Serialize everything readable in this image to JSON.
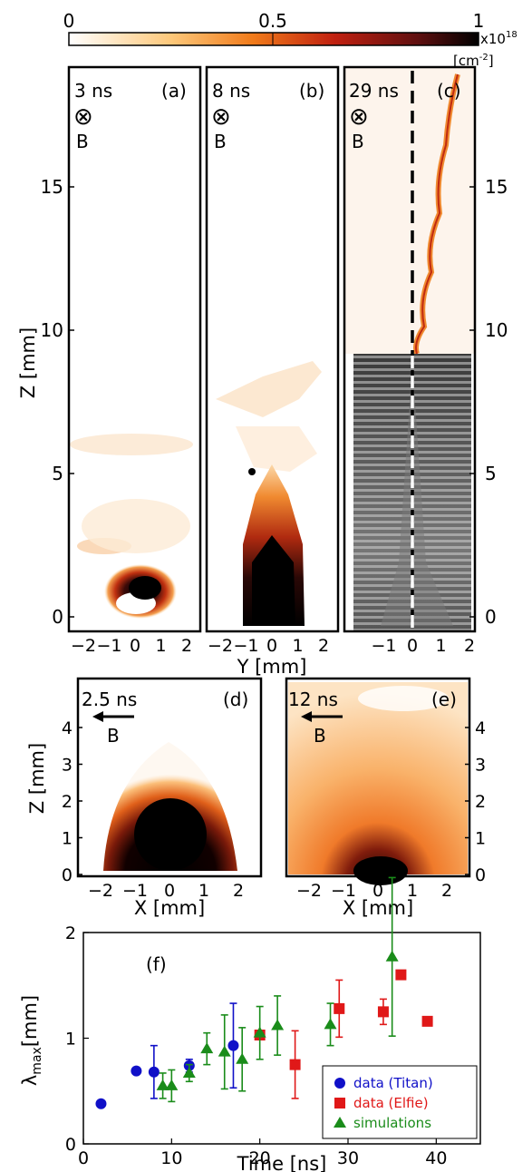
{
  "colorbar": {
    "ticks": [
      "0",
      "0.5",
      "1"
    ],
    "multiplier": "x10",
    "multiplier_exp": "18",
    "unit": "[cm",
    "unit_exp": "-2",
    "unit_close": "]"
  },
  "panels_top": {
    "y_axis_label": "Z [mm]",
    "x_axis_label": "Y [mm]",
    "z_ticks": [
      "0",
      "5",
      "10",
      "15"
    ],
    "y_ticks_ab": [
      "-2",
      "-1",
      "0",
      "1",
      "2"
    ],
    "y_ticks_c": [
      "-1",
      "0",
      "1",
      "2"
    ],
    "field_symbol": "⊗",
    "field_label": "B",
    "a": {
      "time": "3 ns",
      "label": "(a)"
    },
    "b": {
      "time": "8 ns",
      "label": "(b)"
    },
    "c": {
      "time": "29 ns",
      "label": "(c)"
    }
  },
  "panels_mid": {
    "y_axis_label": "Z [mm]",
    "x_axis_label": "X [mm]",
    "z_ticks": [
      "0",
      "1",
      "2",
      "3",
      "4"
    ],
    "x_ticks": [
      "-2",
      "-1",
      "0",
      "1",
      "2"
    ],
    "field_label": "B",
    "d": {
      "time": "2.5 ns",
      "label": "(d)"
    },
    "e": {
      "time": "12 ns",
      "label": "(e)"
    }
  },
  "chart_data": {
    "type": "scatter",
    "panel_label": "(f)",
    "xlabel": "Time [ns]",
    "ylabel": "λmax [mm]",
    "ylabel_main": "λ",
    "ylabel_sub": "max",
    "ylabel_unit": "[mm]",
    "xlim": [
      0,
      45
    ],
    "ylim": [
      0,
      2
    ],
    "xticks": [
      0,
      10,
      20,
      30,
      40
    ],
    "yticks": [
      0,
      1,
      2
    ],
    "legend_position": "bottom-right",
    "series": [
      {
        "name": "data (Titan)",
        "color": "#1010c8",
        "marker": "circle",
        "points": [
          {
            "x": 2,
            "y": 0.38,
            "err": 0
          },
          {
            "x": 6,
            "y": 0.69,
            "err": 0
          },
          {
            "x": 8,
            "y": 0.68,
            "err": 0.25
          },
          {
            "x": 12,
            "y": 0.74,
            "err": 0.06
          },
          {
            "x": 17,
            "y": 0.93,
            "err": 0.4
          }
        ]
      },
      {
        "name": "data (Elfie)",
        "color": "#e01818",
        "marker": "square",
        "points": [
          {
            "x": 20,
            "y": 1.03,
            "err": 0
          },
          {
            "x": 24,
            "y": 0.75,
            "err": 0.32
          },
          {
            "x": 29,
            "y": 1.28,
            "err": 0.27
          },
          {
            "x": 34,
            "y": 1.25,
            "err": 0.12
          },
          {
            "x": 36,
            "y": 1.6,
            "err": 0
          },
          {
            "x": 39,
            "y": 1.16,
            "err": 0
          }
        ]
      },
      {
        "name": "simulations",
        "color": "#1a8c1a",
        "marker": "triangle",
        "points": [
          {
            "x": 9,
            "y": 0.55,
            "err": 0.12
          },
          {
            "x": 10,
            "y": 0.55,
            "err": 0.15
          },
          {
            "x": 12,
            "y": 0.67,
            "err": 0.08
          },
          {
            "x": 14,
            "y": 0.9,
            "err": 0.15
          },
          {
            "x": 16,
            "y": 0.87,
            "err": 0.35
          },
          {
            "x": 18,
            "y": 0.8,
            "err": 0.3
          },
          {
            "x": 20,
            "y": 1.05,
            "err": 0.25
          },
          {
            "x": 22,
            "y": 1.12,
            "err": 0.28
          },
          {
            "x": 28,
            "y": 1.13,
            "err": 0.2
          },
          {
            "x": 35,
            "y": 1.77,
            "err": 0.75
          }
        ]
      }
    ]
  }
}
